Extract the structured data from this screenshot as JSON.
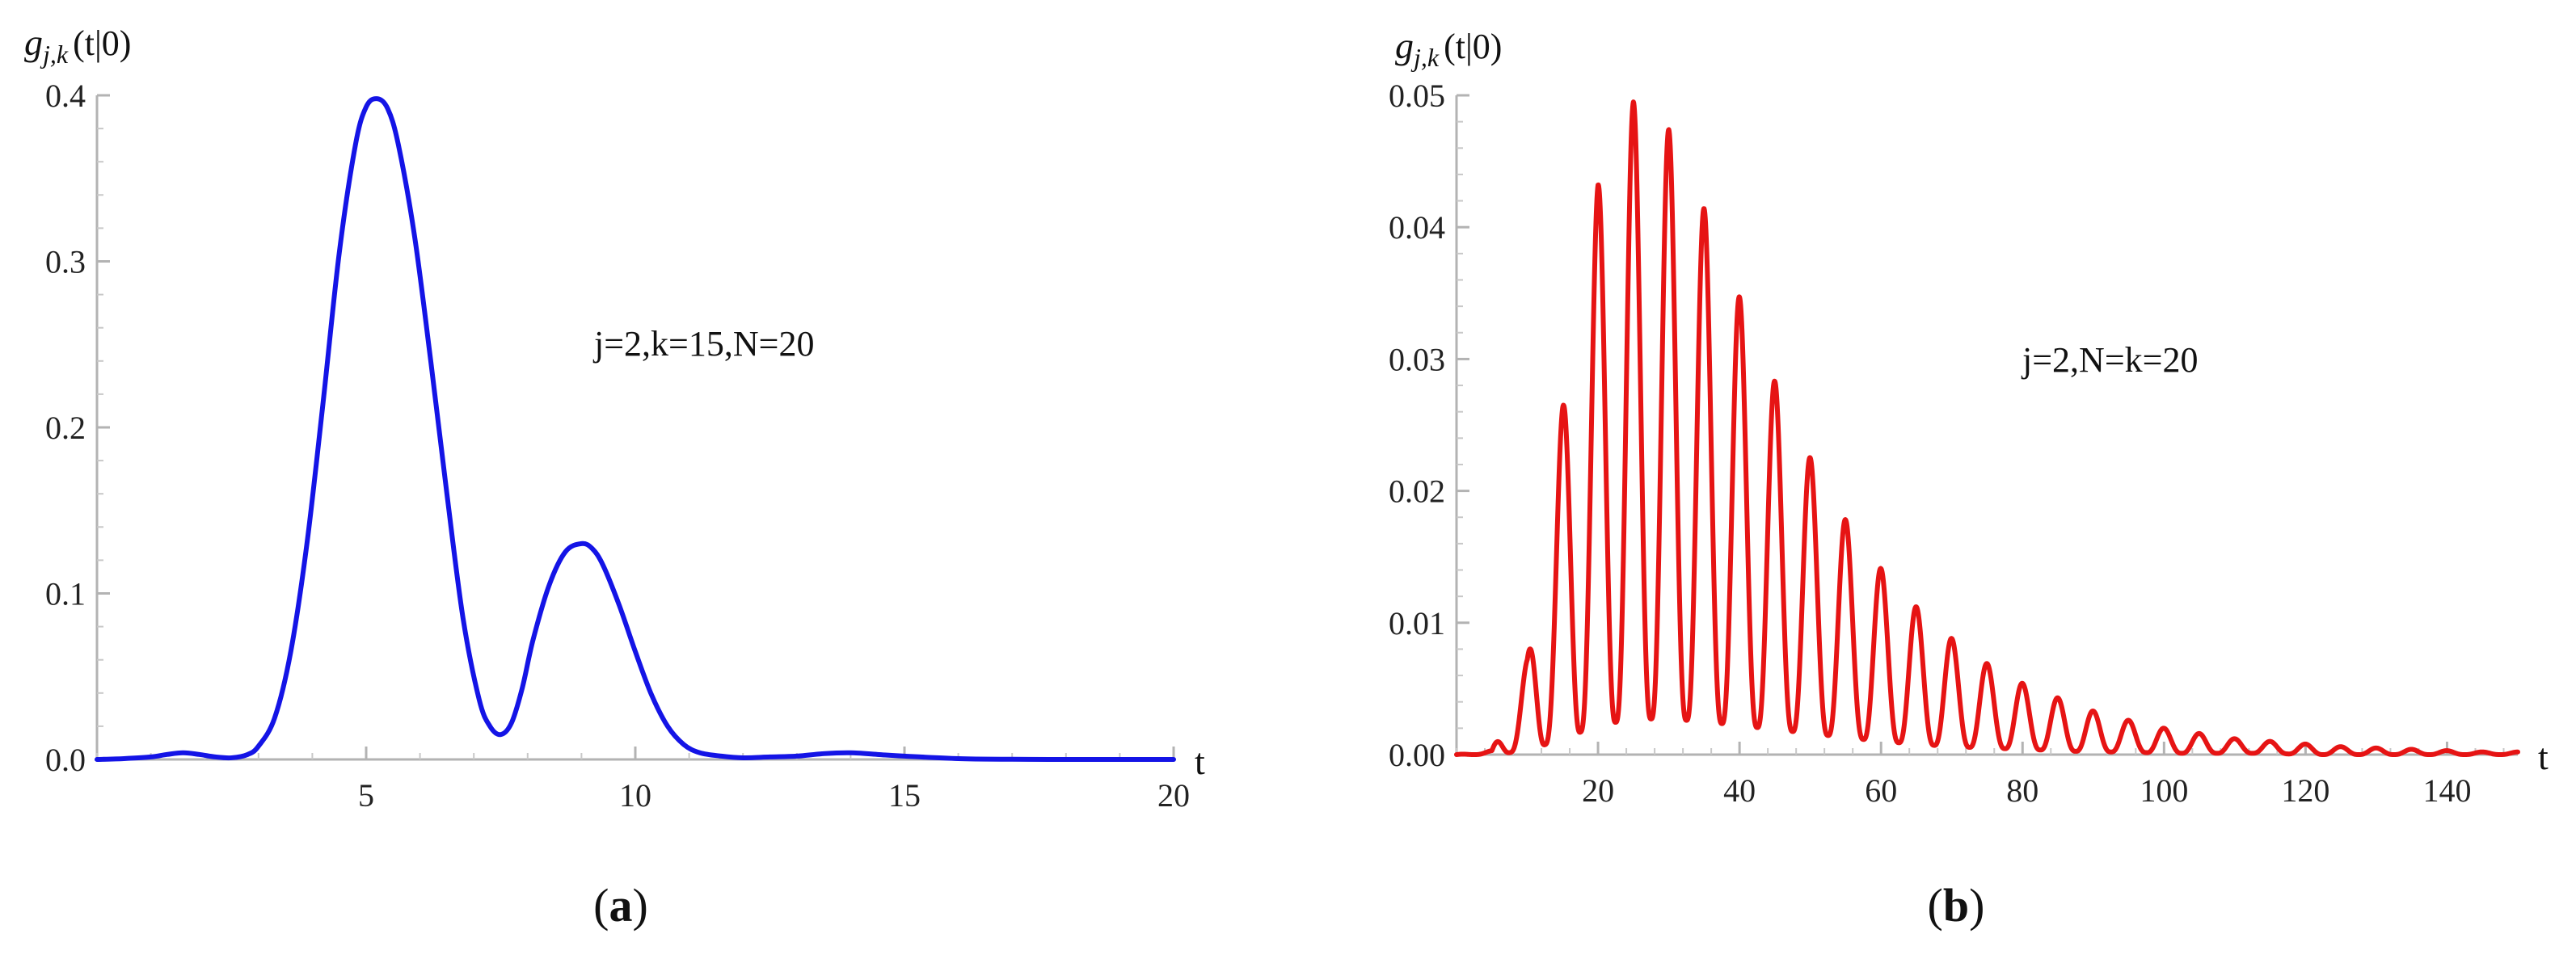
{
  "chart_data": [
    {
      "id": "a",
      "type": "line",
      "panel_label_open": "(",
      "panel_label_letter": "a",
      "panel_label_close": ")",
      "ylabel": {
        "main": "g",
        "sub": "j,k",
        "tail": "(t|0)"
      },
      "xlabel": "t",
      "annotation": "j=2,k=15,N=20",
      "xlim": [
        0,
        20
      ],
      "ylim": [
        0,
        0.4
      ],
      "xticks": [
        5,
        10,
        15,
        20
      ],
      "xtick_labels": [
        "5",
        "10",
        "15",
        "20"
      ],
      "yticks": [
        0.0,
        0.1,
        0.2,
        0.3,
        0.4
      ],
      "ytick_labels": [
        "0.0",
        "0.1",
        "0.2",
        "0.3",
        "0.4"
      ],
      "grid": false,
      "series": [
        {
          "color": "#1414e6",
          "x": [
            0.0,
            0.5,
            1.0,
            1.3,
            1.6,
            1.9,
            2.2,
            2.5,
            2.8,
            3.0,
            3.3,
            3.6,
            3.9,
            4.2,
            4.5,
            4.8,
            5.0,
            5.2,
            5.4,
            5.6,
            5.9,
            6.2,
            6.5,
            6.8,
            7.1,
            7.3,
            7.5,
            7.7,
            7.9,
            8.1,
            8.4,
            8.7,
            9.0,
            9.2,
            9.4,
            9.7,
            10.0,
            10.3,
            10.6,
            10.9,
            11.2,
            11.6,
            12.0,
            12.5,
            13.0,
            13.5,
            14.0,
            14.5,
            15.0,
            16.0,
            17.0,
            18.0,
            19.0,
            20.0
          ],
          "y": [
            0.0,
            0.0005,
            0.0015,
            0.003,
            0.004,
            0.003,
            0.0015,
            0.001,
            0.003,
            0.008,
            0.025,
            0.065,
            0.13,
            0.215,
            0.305,
            0.37,
            0.393,
            0.398,
            0.392,
            0.37,
            0.315,
            0.24,
            0.16,
            0.085,
            0.036,
            0.02,
            0.015,
            0.022,
            0.043,
            0.072,
            0.105,
            0.125,
            0.13,
            0.127,
            0.117,
            0.093,
            0.065,
            0.039,
            0.02,
            0.009,
            0.004,
            0.002,
            0.001,
            0.0015,
            0.002,
            0.0035,
            0.004,
            0.003,
            0.002,
            0.0005,
            0.0001,
            0.0,
            0.0,
            0.0
          ]
        }
      ]
    },
    {
      "id": "b",
      "type": "line",
      "panel_label_open": "(",
      "panel_label_letter": "b",
      "panel_label_close": ")",
      "ylabel": {
        "main": "g",
        "sub": "j,k",
        "tail": "(t|0)"
      },
      "xlabel": "t",
      "annotation": "j=2,N=k=20",
      "xlim": [
        0,
        150
      ],
      "ylim": [
        0,
        0.05
      ],
      "xticks": [
        20,
        40,
        60,
        80,
        100,
        120,
        140
      ],
      "xtick_labels": [
        "20",
        "40",
        "60",
        "80",
        "100",
        "120",
        "140"
      ],
      "yticks": [
        0.0,
        0.01,
        0.02,
        0.03,
        0.04,
        0.05
      ],
      "ytick_labels": [
        "0.00",
        "0.01",
        "0.02",
        "0.03",
        "0.04",
        "0.05"
      ],
      "grid": false,
      "series": [
        {
          "color": "#e61414",
          "oscillation_period": 5,
          "peaks": {
            "t": [
              5,
              10,
              15,
              20,
              25,
              30,
              35,
              40,
              45,
              50,
              55,
              60,
              65,
              70,
              75,
              80,
              85,
              90,
              95,
              100,
              105,
              110,
              115,
              120,
              125,
              130,
              135,
              140,
              145,
              150
            ],
            "max": [
              0.0003,
              0.0072,
              0.0263,
              0.0432,
              0.0495,
              0.0474,
              0.0414,
              0.0347,
              0.0283,
              0.0225,
              0.0178,
              0.0141,
              0.0112,
              0.0088,
              0.0069,
              0.0054,
              0.0043,
              0.0033,
              0.0026,
              0.002,
              0.0016,
              0.0012,
              0.001,
              0.0008,
              0.0006,
              0.0005,
              0.0004,
              0.0003,
              0.0002,
              0.0002
            ],
            "min": [
              0.0,
              0.0003,
              0.0012,
              0.0022,
              0.0027,
              0.0027,
              0.0025,
              0.0022,
              0.0019,
              0.0016,
              0.0013,
              0.001,
              0.0008,
              0.0006,
              0.0005,
              0.0004,
              0.0003,
              0.0002,
              0.0002,
              0.0001,
              0.0001,
              0.0001,
              0.0001,
              0.0,
              0.0,
              0.0,
              0.0,
              0.0,
              0.0,
              0.0
            ]
          }
        }
      ]
    }
  ]
}
